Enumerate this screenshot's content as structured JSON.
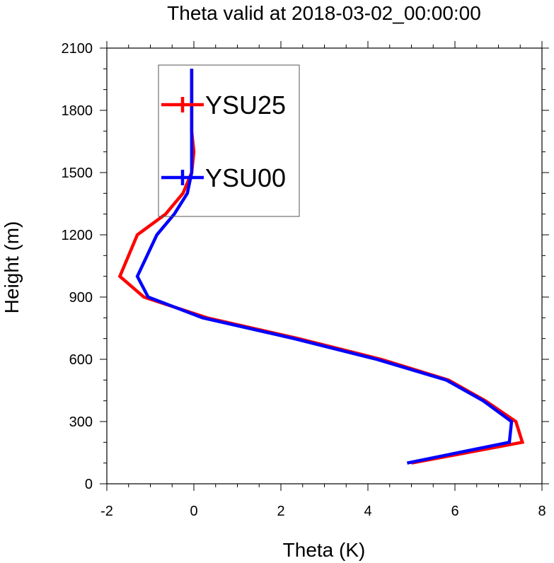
{
  "chart_data": {
    "type": "line",
    "title": "Theta valid at 2018-03-02_00:00:00",
    "xlabel": "Theta (K)",
    "ylabel": "Height (m)",
    "xlim": [
      -2,
      8
    ],
    "ylim": [
      0,
      2100
    ],
    "xticks": [
      "-2",
      "0",
      "2",
      "4",
      "6",
      "8"
    ],
    "yticks": [
      "0",
      "300",
      "600",
      "900",
      "1200",
      "1500",
      "1800",
      "2100"
    ],
    "grid": false,
    "legend_position": "top-left",
    "series": [
      {
        "name": "YSU25",
        "color": "#ff0000",
        "points": [
          [
            5.0,
            100
          ],
          [
            7.55,
            200
          ],
          [
            7.4,
            300
          ],
          [
            6.7,
            400
          ],
          [
            5.85,
            500
          ],
          [
            4.3,
            600
          ],
          [
            2.4,
            700
          ],
          [
            0.3,
            800
          ],
          [
            -1.15,
            900
          ],
          [
            -1.7,
            1000
          ],
          [
            -1.3,
            1200
          ],
          [
            -0.65,
            1300
          ],
          [
            -0.25,
            1400
          ],
          [
            -0.05,
            1500
          ],
          [
            0.0,
            1600
          ],
          [
            -0.05,
            1700
          ],
          [
            -0.05,
            1800
          ],
          [
            -0.05,
            1900
          ],
          [
            -0.05,
            2000
          ]
        ]
      },
      {
        "name": "YSU00",
        "color": "#0000ff",
        "points": [
          [
            4.9,
            100
          ],
          [
            7.25,
            200
          ],
          [
            7.3,
            300
          ],
          [
            6.65,
            400
          ],
          [
            5.8,
            500
          ],
          [
            4.2,
            600
          ],
          [
            2.3,
            700
          ],
          [
            0.2,
            800
          ],
          [
            -1.05,
            900
          ],
          [
            -1.3,
            1000
          ],
          [
            -0.85,
            1200
          ],
          [
            -0.45,
            1300
          ],
          [
            -0.15,
            1400
          ],
          [
            -0.05,
            1500
          ],
          [
            -0.05,
            1600
          ],
          [
            -0.05,
            1700
          ],
          [
            -0.05,
            1800
          ],
          [
            -0.05,
            1900
          ],
          [
            -0.05,
            2000
          ]
        ]
      }
    ]
  }
}
